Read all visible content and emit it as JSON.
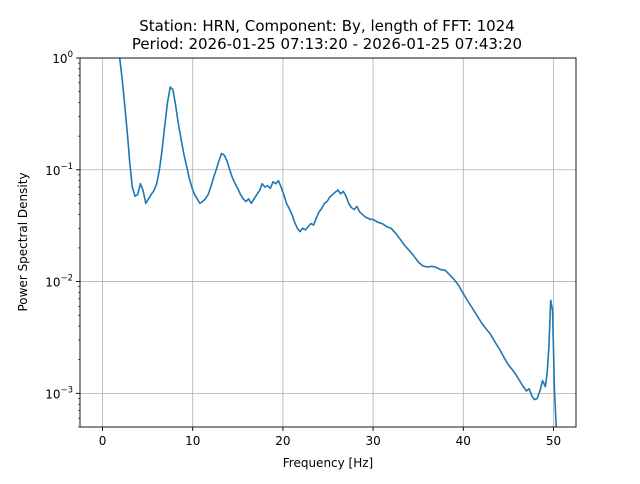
{
  "chart_data": {
    "type": "line",
    "title_line1": "Station: HRN, Component: By, length of FFT: 1024",
    "title_line2": "Period: 2026-01-25 07:13:20 - 2026-01-25 07:43:20",
    "xlabel": "Frequency [Hz]",
    "ylabel": "Power Spectral Density",
    "xlim": [
      -2.5,
      52.5
    ],
    "ylim": [
      0.0005,
      1
    ],
    "yscale": "log",
    "grid": true,
    "line_color": "#1f77b4",
    "x_ticks": [
      0,
      10,
      20,
      30,
      40,
      50
    ],
    "x_tick_labels": [
      "0",
      "10",
      "20",
      "30",
      "40",
      "50"
    ],
    "y_ticks": [
      0.001,
      0.01,
      0.1,
      1
    ],
    "y_tick_labels": [
      {
        "base": "10",
        "exp": "−3"
      },
      {
        "base": "10",
        "exp": "−2"
      },
      {
        "base": "10",
        "exp": "−1"
      },
      {
        "base": "10",
        "exp": "0"
      }
    ],
    "series": [
      {
        "x": [
          1.9,
          2.2,
          2.5,
          2.8,
          3.0,
          3.3,
          3.6,
          3.9,
          4.2,
          4.5,
          4.8,
          5.1,
          5.4,
          5.7,
          6.0,
          6.3,
          6.6,
          6.9,
          7.2,
          7.5,
          7.8,
          8.1,
          8.4,
          8.7,
          9.0,
          9.3,
          9.6,
          9.9,
          10.2,
          10.5,
          10.8,
          11.1,
          11.4,
          11.7,
          12.0,
          12.3,
          12.6,
          12.9,
          13.2,
          13.5,
          13.8,
          14.1,
          14.4,
          14.7,
          15.0,
          15.3,
          15.6,
          15.9,
          16.2,
          16.5,
          16.8,
          17.1,
          17.4,
          17.7,
          18.0,
          18.3,
          18.6,
          18.9,
          19.2,
          19.5,
          19.8,
          20.1,
          20.4,
          20.7,
          21.0,
          21.3,
          21.6,
          21.9,
          22.2,
          22.5,
          22.8,
          23.1,
          23.4,
          23.7,
          24.0,
          24.3,
          24.6,
          24.9,
          25.2,
          25.5,
          25.8,
          26.1,
          26.4,
          26.7,
          27.0,
          27.3,
          27.6,
          27.9,
          28.2,
          28.5,
          28.8,
          29.1,
          29.4,
          29.7,
          30.0,
          30.5,
          31.0,
          31.5,
          32.0,
          32.5,
          33.0,
          33.5,
          34.0,
          34.5,
          35.0,
          35.5,
          36.0,
          36.5,
          37.0,
          37.5,
          38.0,
          38.5,
          39.0,
          39.5,
          40.0,
          40.5,
          41.0,
          41.5,
          42.0,
          42.5,
          43.0,
          43.5,
          44.0,
          44.5,
          45.0,
          45.5,
          46.0,
          46.5,
          47.0,
          47.3,
          47.6,
          47.9,
          48.2,
          48.5,
          48.8,
          49.1,
          49.3,
          49.5,
          49.7,
          49.9,
          50.1,
          50.3
        ],
        "y": [
          1.0,
          0.62,
          0.35,
          0.19,
          0.12,
          0.07,
          0.058,
          0.06,
          0.075,
          0.065,
          0.05,
          0.055,
          0.06,
          0.065,
          0.075,
          0.1,
          0.15,
          0.25,
          0.4,
          0.55,
          0.52,
          0.38,
          0.26,
          0.19,
          0.14,
          0.11,
          0.085,
          0.07,
          0.06,
          0.055,
          0.05,
          0.052,
          0.055,
          0.06,
          0.07,
          0.085,
          0.1,
          0.12,
          0.14,
          0.135,
          0.12,
          0.1,
          0.085,
          0.075,
          0.068,
          0.06,
          0.055,
          0.052,
          0.055,
          0.05,
          0.055,
          0.06,
          0.065,
          0.075,
          0.07,
          0.072,
          0.068,
          0.078,
          0.075,
          0.08,
          0.07,
          0.06,
          0.05,
          0.045,
          0.04,
          0.034,
          0.03,
          0.028,
          0.03,
          0.029,
          0.031,
          0.033,
          0.032,
          0.037,
          0.042,
          0.045,
          0.05,
          0.052,
          0.057,
          0.06,
          0.063,
          0.066,
          0.061,
          0.064,
          0.058,
          0.05,
          0.046,
          0.044,
          0.047,
          0.042,
          0.04,
          0.038,
          0.037,
          0.036,
          0.036,
          0.034,
          0.033,
          0.031,
          0.03,
          0.027,
          0.024,
          0.021,
          0.019,
          0.017,
          0.015,
          0.0138,
          0.0135,
          0.0137,
          0.0134,
          0.0128,
          0.0126,
          0.0115,
          0.0104,
          0.0092,
          0.0078,
          0.0067,
          0.0058,
          0.005,
          0.0043,
          0.0038,
          0.0034,
          0.0029,
          0.0025,
          0.0021,
          0.0018,
          0.0016,
          0.0014,
          0.0012,
          0.00105,
          0.0011,
          0.00095,
          0.00088,
          0.0009,
          0.00105,
          0.0013,
          0.00115,
          0.0015,
          0.0026,
          0.0068,
          0.0055,
          0.0011,
          0.0005
        ]
      }
    ]
  }
}
